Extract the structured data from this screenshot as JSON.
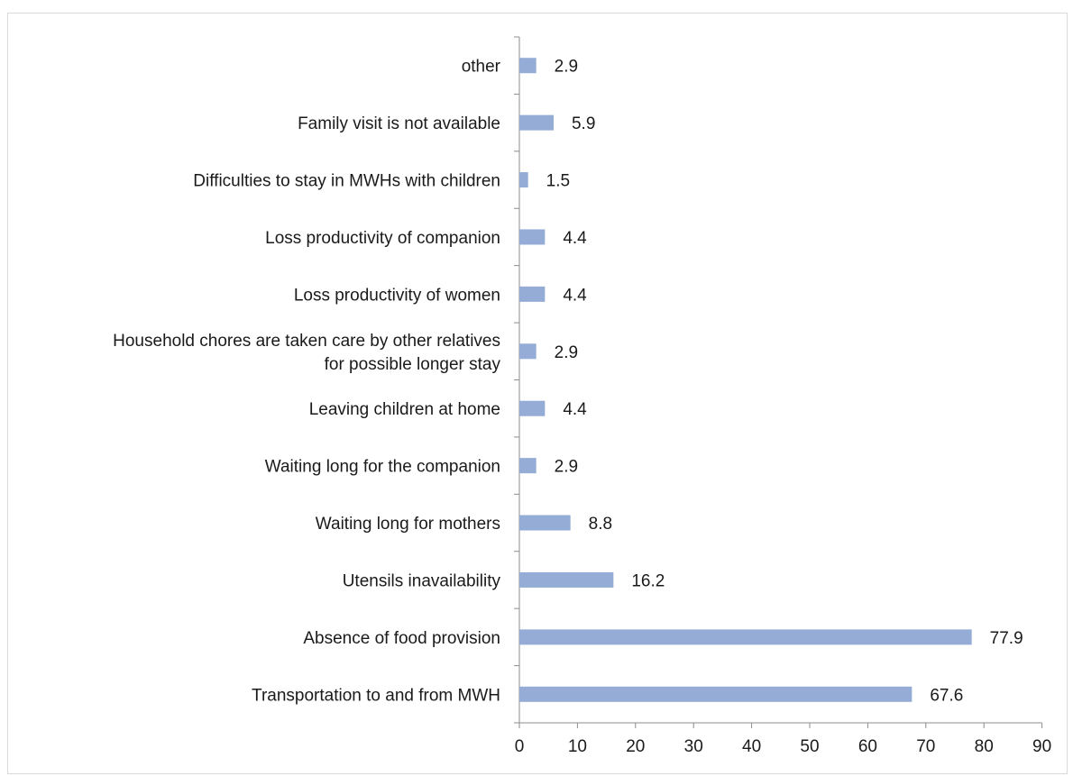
{
  "chart_data": {
    "type": "bar",
    "orientation": "horizontal",
    "title": "",
    "xlabel": "",
    "ylabel": "",
    "categories": [
      [
        "Transportation to and from MWH"
      ],
      [
        "Absence of food provision"
      ],
      [
        "Utensils inavailability"
      ],
      [
        "Waiting long for mothers"
      ],
      [
        "Waiting long for the companion"
      ],
      [
        "Leaving children at home"
      ],
      [
        "Household chores are taken care by other relatives",
        "for possible longer stay"
      ],
      [
        "Loss productivity of women"
      ],
      [
        "Loss productivity of companion"
      ],
      [
        "Difficulties to stay in MWHs with children"
      ],
      [
        "Family visit is not available"
      ],
      [
        "other"
      ]
    ],
    "values": [
      67.6,
      77.9,
      16.2,
      8.8,
      2.9,
      4.4,
      2.9,
      4.4,
      4.4,
      1.5,
      5.9,
      2.9
    ],
    "value_labels": [
      "67.6",
      "77.9",
      "16.2",
      "8.8",
      "2.9",
      "4.4",
      "2.9",
      "4.4",
      "4.4",
      "1.5",
      "5.9",
      "2.9"
    ],
    "xlim": [
      0,
      90
    ],
    "xticks": [
      0,
      10,
      20,
      30,
      40,
      50,
      60,
      70,
      80,
      90
    ],
    "grid": false,
    "legend": "none",
    "bar_color": "#94acd6"
  }
}
